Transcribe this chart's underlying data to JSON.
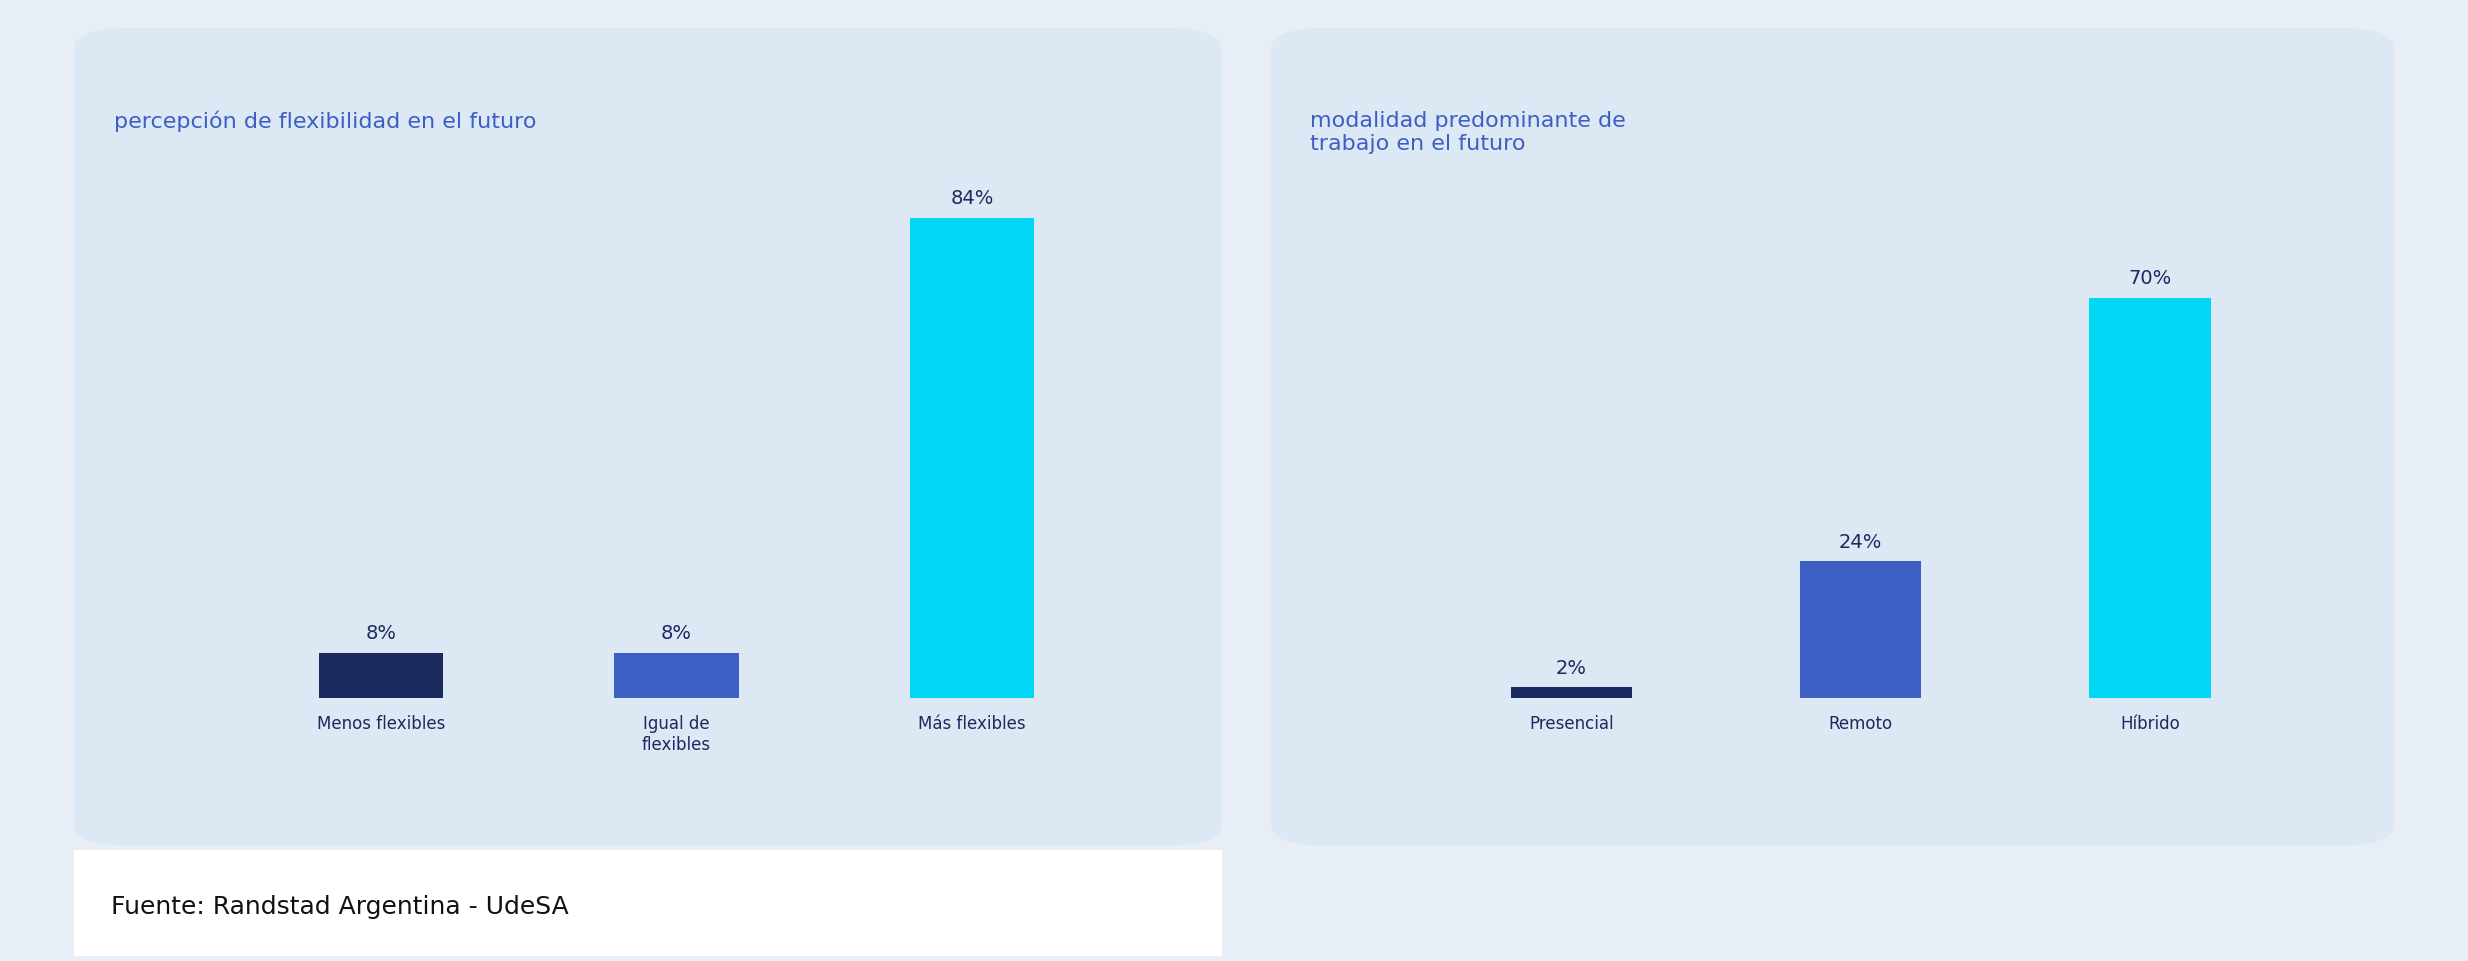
{
  "chart1": {
    "title": "percepción de flexibilidad en el futuro",
    "categories": [
      "Menos flexibles",
      "Igual de\nflexibles",
      "Más flexibles"
    ],
    "values": [
      8,
      8,
      84
    ],
    "colors": [
      "#1b2a5e",
      "#3d5fc4",
      "#00d8f5"
    ],
    "labels": [
      "8%",
      "8%",
      "84%"
    ],
    "bg_color": "#dde8f5"
  },
  "chart2": {
    "title": "modalidad predominante de\ntrabajo en el futuro",
    "categories": [
      "Presencial",
      "Remoto",
      "Híbrido"
    ],
    "values": [
      2,
      24,
      70
    ],
    "colors": [
      "#1b2a5e",
      "#3d5fc4",
      "#00d8f5"
    ],
    "labels": [
      "2%",
      "24%",
      "70%"
    ],
    "bg_color": "#dde8f5"
  },
  "footer_text": "Fuente: Randstad Argentina - UdeSA",
  "title_color": "#3d5fc4",
  "label_color": "#1b2a5e",
  "tick_color": "#1b2a5e",
  "outer_bg": "#e8eef6",
  "footer_bg": "#ffffff",
  "bar_width": 0.42,
  "ylim": [
    0,
    100
  ],
  "label_fontsize": 14,
  "tick_fontsize": 12,
  "title_fontsize": 16,
  "footer_fontsize": 18
}
